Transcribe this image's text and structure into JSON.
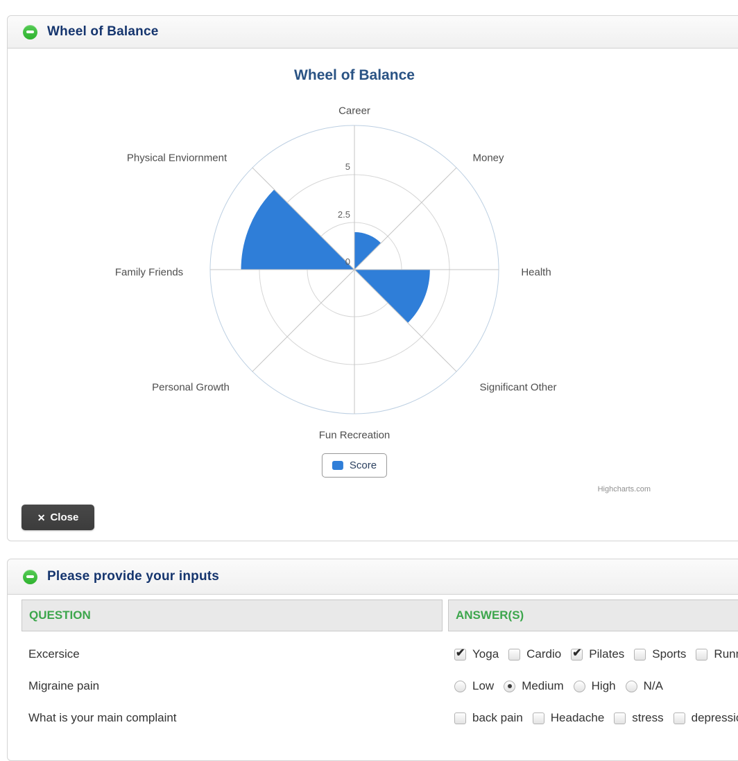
{
  "accent_colors": {
    "series_blue": "#2f7ed8",
    "icon_green": "#3cbc3c",
    "table_header_green": "#3ca64c",
    "panel_title_blue": "#15356e"
  },
  "panel_chart": {
    "header": {
      "title": "Wheel of Balance",
      "collapse_icon": "minus-circle-icon"
    },
    "close_button": {
      "label": "Close",
      "icon": "close-x-icon",
      "x_glyph": "✕"
    },
    "credits": "Highcharts.com"
  },
  "chart_data": {
    "type": "polar-column",
    "title": "Wheel of Balance",
    "categories": [
      "Career",
      "Money",
      "Health",
      "Significant Other",
      "Fun Recreation",
      "Personal Growth",
      "Family Friends",
      "Physical Enviornment"
    ],
    "series": [
      {
        "name": "Score",
        "color": "#2f7ed8",
        "values": [
          2,
          0,
          4,
          0,
          0,
          0,
          6,
          0
        ]
      }
    ],
    "yaxis": {
      "ticks": [
        0,
        2.5,
        5
      ],
      "max": 7.5,
      "grid": true
    },
    "legend_position": "bottom-center"
  },
  "panel_form": {
    "header": {
      "title": "Please provide your inputs",
      "collapse_icon": "minus-circle-icon"
    },
    "table": {
      "columns": [
        "QUESTION",
        "ANSWER(S)"
      ],
      "rows": [
        {
          "question": "Excersice",
          "type": "checkbox",
          "options": [
            {
              "label": "Yoga",
              "checked": true
            },
            {
              "label": "Cardio",
              "checked": false
            },
            {
              "label": "Pilates",
              "checked": true
            },
            {
              "label": "Sports",
              "checked": false
            },
            {
              "label": "Running",
              "checked": false
            }
          ]
        },
        {
          "question": "Migraine pain",
          "type": "radio",
          "options": [
            {
              "label": "Low",
              "checked": false
            },
            {
              "label": "Medium",
              "checked": true
            },
            {
              "label": "High",
              "checked": false
            },
            {
              "label": "N/A",
              "checked": false
            }
          ]
        },
        {
          "question": "What is your main complaint",
          "type": "checkbox",
          "options": [
            {
              "label": "back pain",
              "checked": false
            },
            {
              "label": "Headache",
              "checked": false
            },
            {
              "label": "stress",
              "checked": false
            },
            {
              "label": "depression",
              "checked": false
            }
          ]
        }
      ]
    }
  }
}
